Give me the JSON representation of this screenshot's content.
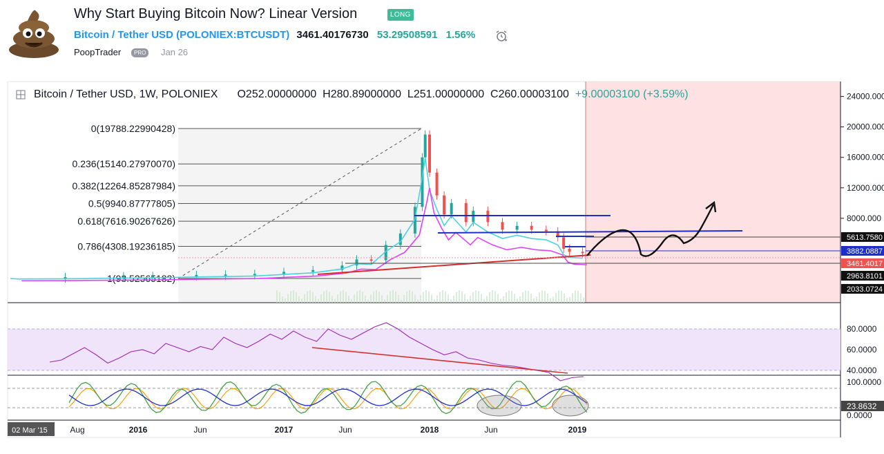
{
  "header": {
    "title": "Why Start Buying Bitcoin Now? Linear Version",
    "badge": "LONG",
    "symbol_name": "Bitcoin / Tether USD",
    "symbol_code": "(POLONIEX:BTCUSDT)",
    "price": "3461.40176730",
    "change": "53.29508591",
    "change_pct": "1.56%",
    "author": "PoopTrader",
    "author_badge": "PRO",
    "date": "Jan 26"
  },
  "legend": {
    "title": "Bitcoin / Tether USD, 1W, POLONIEX",
    "o": "O252.00000000",
    "h": "H280.89000000",
    "l": "L251.00000000",
    "c": "C260.00003100",
    "chg": "+9.00003100 (+3.59%)"
  },
  "chart_data": {
    "type": "line",
    "title": "Bitcoin / Tether USD, 1W, POLONIEX",
    "price_axis_ticks": [
      "24000.000",
      "20000.000",
      "16000.000",
      "12000.000",
      "8000.000"
    ],
    "price_labels": [
      "5613.7580",
      "3882.0887",
      "3461.4017",
      "2963.8101",
      "2033.0724"
    ],
    "rsi_axis_ticks": [
      "80.0000",
      "60.0000",
      "40.0000"
    ],
    "stoch_axis_ticks": [
      "100.0000",
      "23.8632",
      "0.0000"
    ],
    "time_ticks": [
      "02 Mar '15",
      "Aug",
      "2016",
      "Jun",
      "2017",
      "Jun",
      "2018",
      "Jun",
      "2019"
    ],
    "fib_levels": [
      {
        "ratio": "0",
        "label": "0(19788.22990428)",
        "price": 19788.23
      },
      {
        "ratio": "0.236",
        "label": "0.236(15140.27970070)",
        "price": 15140.28
      },
      {
        "ratio": "0.382",
        "label": "0.382(12264.85287984)",
        "price": 12264.85
      },
      {
        "ratio": "0.5",
        "label": "0.5(9940.87777805)",
        "price": 9940.88
      },
      {
        "ratio": "0.618",
        "label": "0.618(7616.90267626)",
        "price": 7616.9
      },
      {
        "ratio": "0.786",
        "label": "0.786(4308.19236185)",
        "price": 4308.19
      },
      {
        "ratio": "1",
        "label": "1(93.52565182)",
        "price": 93.53
      }
    ],
    "price_series": [
      [
        2015.17,
        250
      ],
      [
        2015.5,
        280
      ],
      [
        2015.9,
        380
      ],
      [
        2016.1,
        420
      ],
      [
        2016.4,
        560
      ],
      [
        2016.6,
        620
      ],
      [
        2016.8,
        700
      ],
      [
        2017.0,
        960
      ],
      [
        2017.2,
        1200
      ],
      [
        2017.4,
        1800
      ],
      [
        2017.5,
        2600
      ],
      [
        2017.6,
        2500
      ],
      [
        2017.7,
        4500
      ],
      [
        2017.8,
        6000
      ],
      [
        2017.9,
        9500
      ],
      [
        2017.95,
        16000
      ],
      [
        2017.97,
        19000
      ],
      [
        2018.0,
        14000
      ],
      [
        2018.05,
        11000
      ],
      [
        2018.1,
        8500
      ],
      [
        2018.15,
        10000
      ],
      [
        2018.25,
        7500
      ],
      [
        2018.3,
        9000
      ],
      [
        2018.4,
        7500
      ],
      [
        2018.5,
        6500
      ],
      [
        2018.6,
        7000
      ],
      [
        2018.7,
        6500
      ],
      [
        2018.8,
        6300
      ],
      [
        2018.88,
        5500
      ],
      [
        2018.92,
        4000
      ],
      [
        2018.96,
        3600
      ],
      [
        2019.05,
        3461
      ]
    ],
    "rsi_series": [
      48,
      50,
      56,
      62,
      55,
      47,
      52,
      58,
      60,
      56,
      66,
      62,
      58,
      63,
      60,
      72,
      66,
      62,
      68,
      75,
      70,
      78,
      72,
      68,
      80,
      74,
      70,
      76,
      82,
      86,
      80,
      72,
      66,
      60,
      55,
      58,
      52,
      50,
      47,
      45,
      44,
      42,
      40,
      38,
      30,
      33,
      34
    ],
    "annotations": [
      "Projected path arrow",
      "Support/resistance lines",
      "RSI divergence line"
    ]
  }
}
